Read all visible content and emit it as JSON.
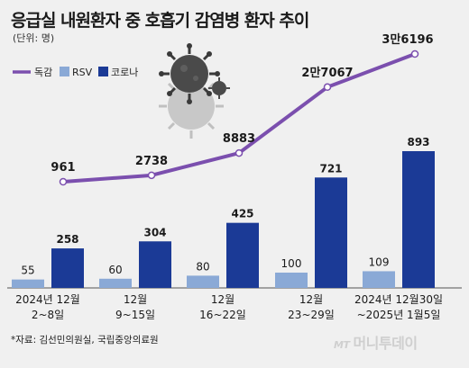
{
  "title": "응급실 내원환자 중 호흡기 감염병 환자 추이",
  "unit": "(단위: 명)",
  "source": "*자료: 김선민의원실, 국립중앙의료원",
  "watermark": {
    "mt": "MT",
    "text": "머니투데이"
  },
  "colors": {
    "flu": "#7b4fae",
    "rsv": "#8aa9d6",
    "covid": "#1b3a96",
    "background": "#f0f0f0"
  },
  "chart_data": {
    "type": "bar",
    "categories": [
      [
        "2024년 12월",
        "2~8일"
      ],
      [
        "12월",
        "9~15일"
      ],
      [
        "12월",
        "16~22일"
      ],
      [
        "12월",
        "23~29일"
      ],
      [
        "2024년 12월30일",
        "~2025년 1월5일"
      ]
    ],
    "series": [
      {
        "name": "RSV",
        "type": "bar",
        "values": [
          55,
          60,
          80,
          100,
          109
        ],
        "labels": [
          "55",
          "60",
          "80",
          "100",
          "109"
        ]
      },
      {
        "name": "코로나",
        "type": "bar",
        "values": [
          258,
          304,
          425,
          721,
          893
        ],
        "labels": [
          "258",
          "304",
          "425",
          "721",
          "893"
        ]
      },
      {
        "name": "독감",
        "type": "line",
        "values": [
          961,
          2738,
          8883,
          27067,
          36196
        ],
        "labels": [
          "961",
          "2738",
          "8883",
          "2만7067",
          "3만6196"
        ]
      }
    ],
    "legend": [
      "독감",
      "RSV",
      "코로나"
    ],
    "legend_position": "top-left",
    "grid": false
  }
}
